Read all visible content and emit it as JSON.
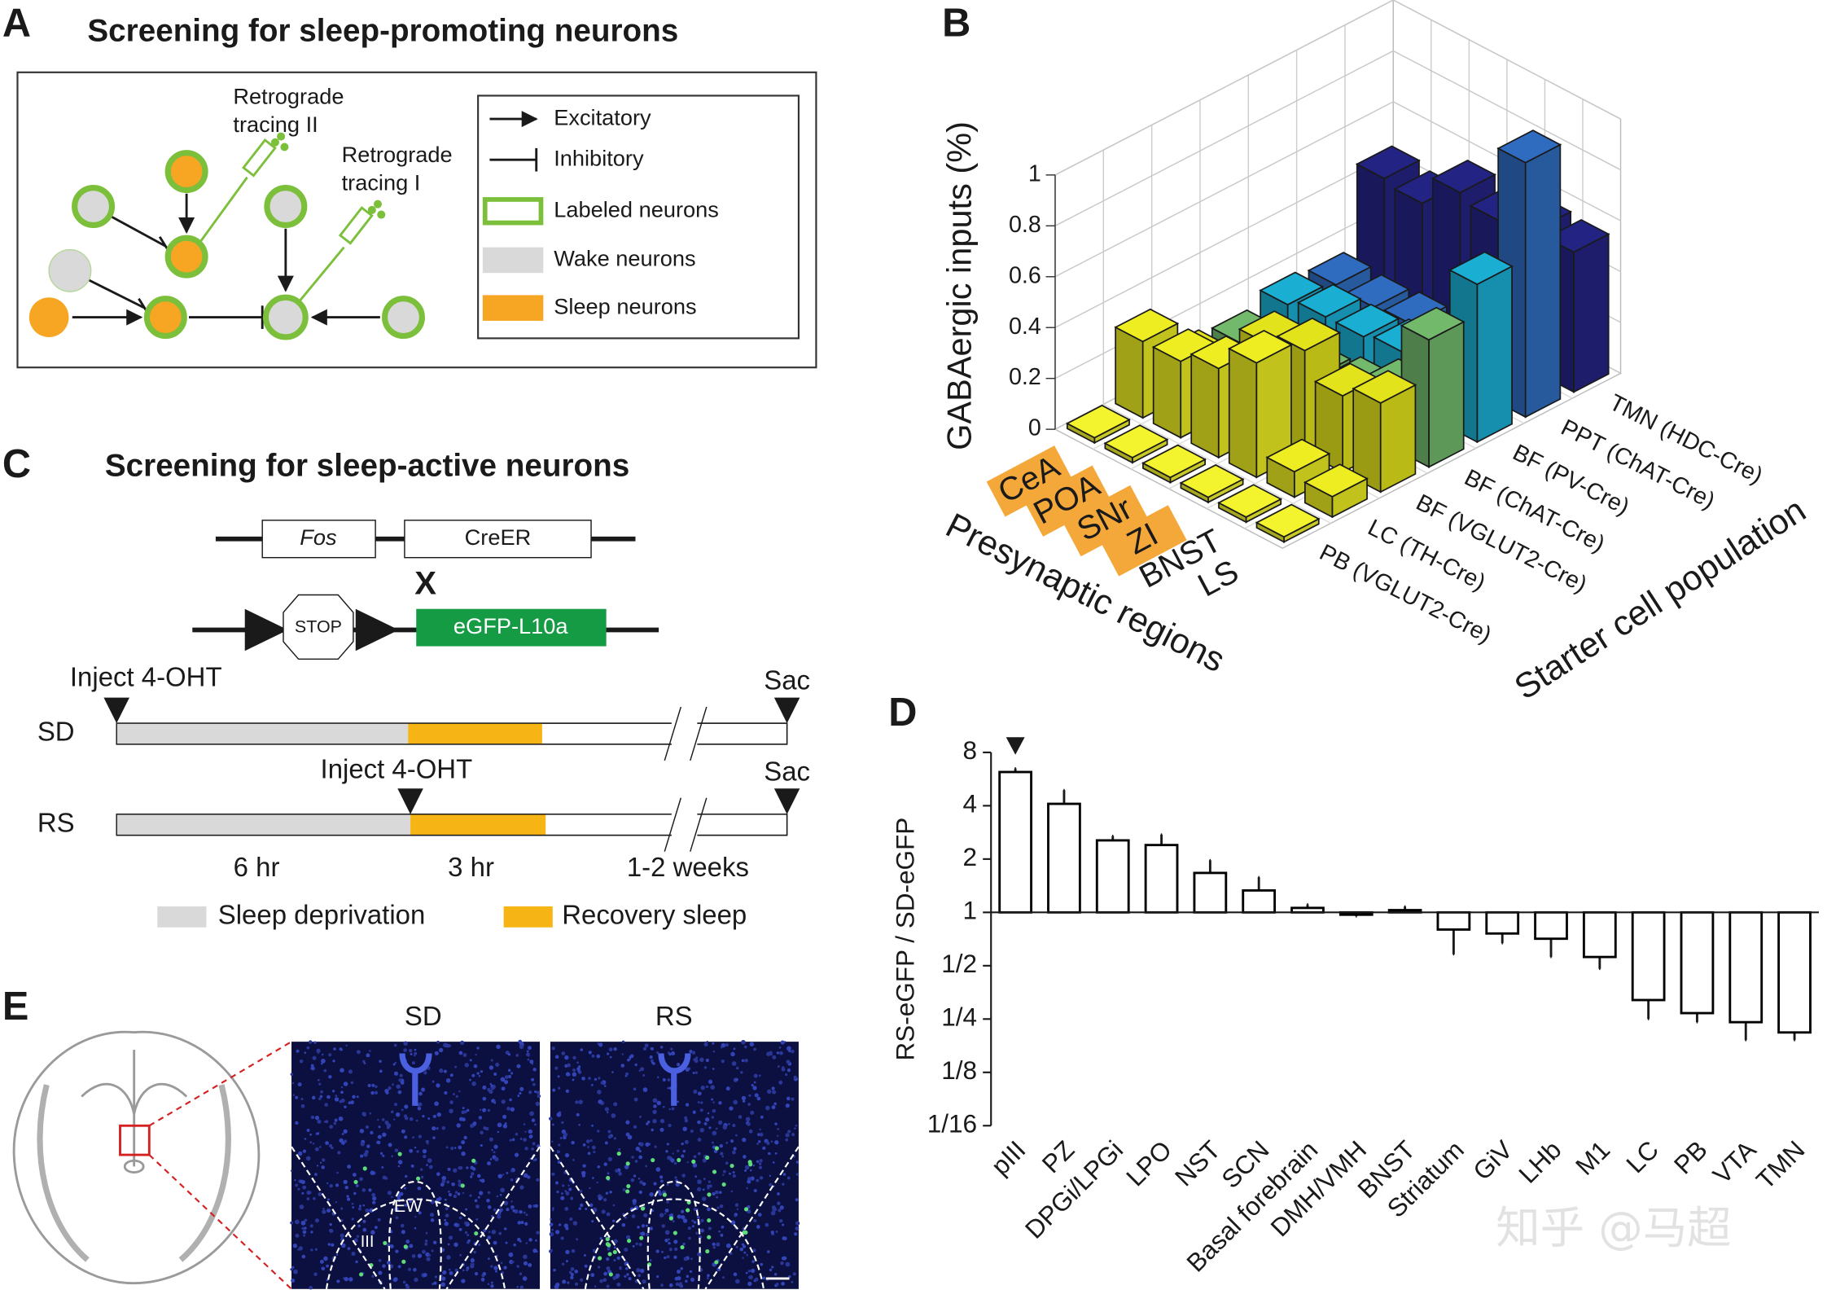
{
  "panel_labels": [
    "A",
    "B",
    "C",
    "D",
    "E"
  ],
  "panel_a": {
    "title": "Screening for sleep-promoting neurons",
    "tracing_2": [
      "Retrograde",
      "tracing II"
    ],
    "tracing_1": [
      "Retrograde",
      "tracing I"
    ],
    "legend": [
      "Excitatory",
      "Inhibitory",
      "Labeled neurons",
      "Wake neurons",
      "Sleep neurons"
    ]
  },
  "panel_c": {
    "title": "Screening for sleep-active neurons",
    "construct_1": [
      "Fos",
      "CreER"
    ],
    "cross": "X",
    "construct_2": [
      "STOP",
      "eGFP-L10a"
    ],
    "rows": [
      "SD",
      "RS"
    ],
    "sd_events": [
      "Inject 4-OHT",
      "Sac"
    ],
    "rs_events": [
      "Inject 4-OHT",
      "Sac"
    ],
    "durations": [
      "6 hr",
      "3 hr",
      "1-2 weeks"
    ],
    "legend": [
      "Sleep deprivation",
      "Recovery sleep"
    ]
  },
  "panel_e": {
    "images": [
      "SD",
      "RS"
    ],
    "regions": [
      "EW",
      "III"
    ]
  },
  "chart_data": [
    {
      "type": "bar3d",
      "z_label": "GABAergic inputs (%)",
      "x_label": "Presynaptic regions",
      "y_label": "Starter cell population",
      "x_categories": [
        "CeA",
        "POA",
        "SNr",
        "ZI",
        "BNST",
        "LS"
      ],
      "x_highlighted": [
        true,
        true,
        true,
        true,
        false,
        false
      ],
      "highlight_color": "#f5a83a",
      "y_categories": [
        "TMN (HDC-Cre)",
        "PPT (ChAT-Cre)",
        "BF (PV-Cre)",
        "BF (ChAT-Cre)",
        "BF (VGLUT2-Cre)",
        "LC (TH-Cre)",
        "PB (VGLUT2-Cre)"
      ],
      "colors": [
        "#232384",
        "#2f6cc0",
        "#1aaed3",
        "#72b96c",
        "#e3e31c",
        "#eded22",
        "#f4f42e"
      ],
      "values": [
        [
          0.45,
          0.43,
          0.55,
          0.52,
          0.56,
          0.55
        ],
        [
          0.13,
          0.12,
          0.13,
          0.14,
          0.15,
          1.0
        ],
        [
          0.15,
          0.18,
          0.18,
          0.2,
          0.22,
          0.62
        ],
        [
          0.1,
          0.15,
          0.12,
          0.15,
          0.22,
          0.5
        ],
        [
          0.12,
          0.1,
          0.35,
          0.4,
          0.3,
          0.35
        ],
        [
          0.3,
          0.3,
          0.35,
          0.45,
          0.1,
          0.08
        ],
        [
          0.02,
          0.02,
          0.02,
          0.02,
          0.02,
          0.02
        ]
      ],
      "zlim": [
        0,
        1
      ],
      "zticks": [
        0,
        0.2,
        0.4,
        0.6,
        0.8,
        1
      ],
      "grid": true
    },
    {
      "type": "bar",
      "y_label": "RS-eGFP / SD-eGFP",
      "categories": [
        "pIII",
        "PZ",
        "DPGi/LPGi",
        "LPO",
        "NST",
        "SCN",
        "Basal forebrain",
        "DMH/VMH",
        "BNST",
        "Striatum",
        "GiV",
        "LHb",
        "M1",
        "LC",
        "PB",
        "VTA",
        "TMN"
      ],
      "values": [
        6.2,
        4.1,
        2.55,
        2.4,
        1.67,
        1.33,
        1.06,
        0.97,
        1.03,
        0.8,
        0.76,
        0.71,
        0.56,
        0.32,
        0.27,
        0.24,
        0.21
      ],
      "errors": [
        0.3,
        0.8,
        0.15,
        0.35,
        0.3,
        0.25,
        0.05,
        0.02,
        0.05,
        0.22,
        0.09,
        0.15,
        0.08,
        0.07,
        0.03,
        0.05,
        0.02
      ],
      "color": "#ffffff",
      "edge_color": "#000000",
      "log_base": 2,
      "ylim": [
        0.0625,
        8
      ],
      "yticks": [
        8,
        4,
        2,
        1,
        {
          "value": 0.5,
          "label": "1/2"
        },
        {
          "value": 0.25,
          "label": "1/4"
        },
        {
          "value": 0.125,
          "label": "1/8"
        },
        {
          "value": 0.0625,
          "label": "1/16"
        }
      ]
    }
  ],
  "watermark": "知乎 @马超"
}
